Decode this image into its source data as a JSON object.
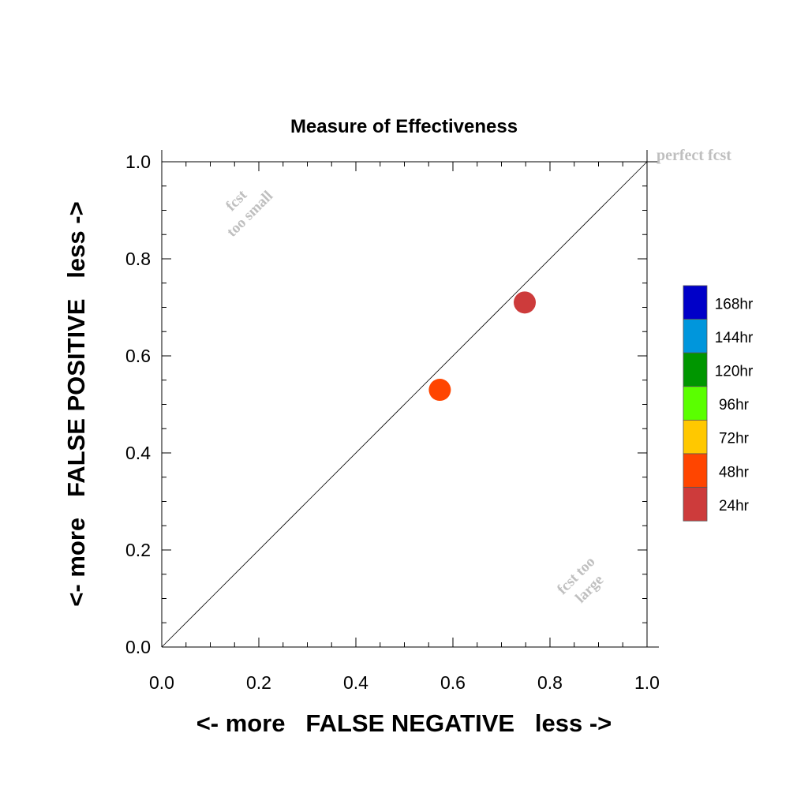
{
  "chart_data": {
    "type": "scatter",
    "title": "Measure of Effectiveness",
    "xlabel": "<- more   FALSE NEGATIVE   less ->",
    "ylabel": "<- more   FALSE POSITIVE   less ->",
    "xlim": [
      0.0,
      1.0
    ],
    "ylim": [
      0.0,
      1.0
    ],
    "x_ticks": [
      "0.0",
      "0.2",
      "0.4",
      "0.6",
      "0.8",
      "1.0"
    ],
    "y_ticks": [
      "0.0",
      "0.2",
      "0.4",
      "0.6",
      "0.8",
      "1.0"
    ],
    "grid": false,
    "diagonal_line": {
      "from": [
        0,
        0
      ],
      "to": [
        1,
        1
      ],
      "color": "#000000"
    },
    "annotations": [
      {
        "text": "perfect fcst",
        "x": 1.0,
        "y": 1.0,
        "color": "#bfbfbf"
      },
      {
        "lines": [
          "fcst",
          "too small"
        ],
        "x": 0.13,
        "y": 0.9,
        "color": "#bfbfbf",
        "rotation": -45
      },
      {
        "lines": [
          "fcst too",
          "large"
        ],
        "x": 0.83,
        "y": 0.15,
        "color": "#bfbfbf",
        "rotation": -45
      }
    ],
    "points": [
      {
        "x": 0.573,
        "y": 0.53,
        "color": "#ff4500",
        "lead": "48hr"
      },
      {
        "x": 0.748,
        "y": 0.71,
        "color": "#cd3b3b",
        "lead": "24hr"
      }
    ],
    "legend": {
      "placement": "right",
      "items": [
        {
          "label": "168hr",
          "color": "#0000c8"
        },
        {
          "label": "144hr",
          "color": "#0096dc"
        },
        {
          "label": "120hr",
          "color": "#009600"
        },
        {
          "label": "96hr",
          "color": "#5aff00"
        },
        {
          "label": "72hr",
          "color": "#ffc800"
        },
        {
          "label": "48hr",
          "color": "#ff4500"
        },
        {
          "label": "24hr",
          "color": "#cd3b3b"
        }
      ]
    }
  }
}
